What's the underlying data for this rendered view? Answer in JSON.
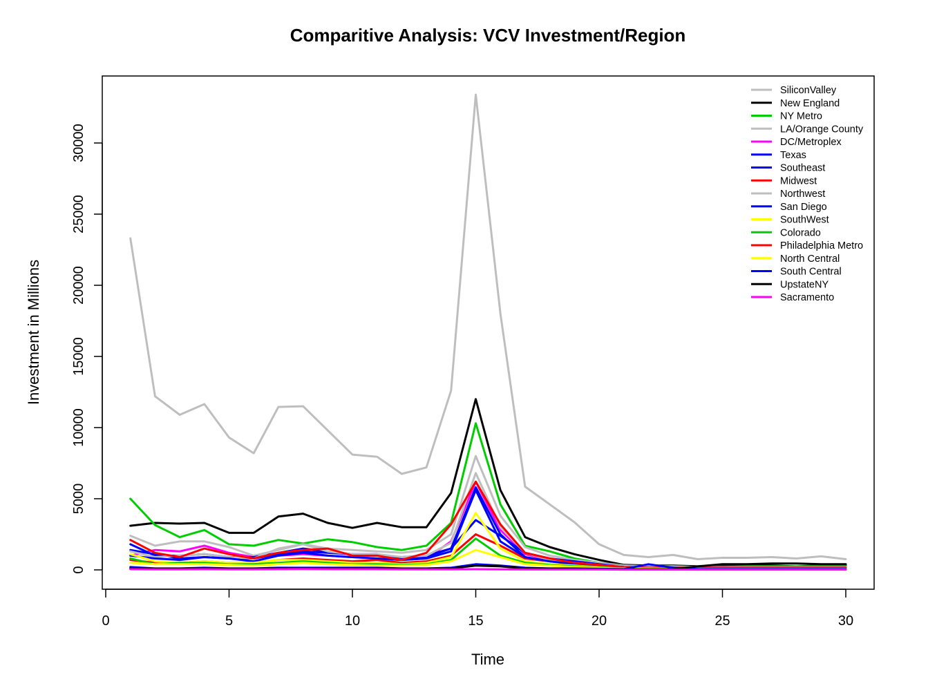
{
  "chart_data": {
    "type": "line",
    "title": "Comparitive Analysis: VCV Investment/Region",
    "xlabel": "Time",
    "ylabel": "Investment in Millions",
    "xlim": [
      0,
      30
    ],
    "ylim": [
      0,
      33500
    ],
    "xticks": [
      0,
      5,
      10,
      15,
      20,
      25,
      30
    ],
    "yticks": [
      0,
      5000,
      10000,
      15000,
      20000,
      25000,
      30000
    ],
    "grid": false,
    "legend_position": "top-right",
    "x": [
      1,
      2,
      3,
      4,
      5,
      6,
      7,
      8,
      9,
      10,
      11,
      12,
      13,
      14,
      15,
      16,
      17,
      18,
      19,
      20,
      21,
      22,
      23,
      24,
      25,
      26,
      27,
      28,
      29,
      30
    ],
    "series": [
      {
        "name": "SiliconValley",
        "color": "#BEBEBE",
        "values": [
          23300,
          12200,
          10900,
          11650,
          9300,
          8200,
          11450,
          11500,
          9800,
          8100,
          7950,
          6750,
          7200,
          12600,
          33400,
          18000,
          5850,
          4600,
          3350,
          1800,
          1050,
          900,
          1050,
          750,
          850,
          850,
          900,
          800,
          950,
          750
        ]
      },
      {
        "name": "New England",
        "color": "#000000",
        "values": [
          3100,
          3300,
          3250,
          3300,
          2600,
          2600,
          3750,
          3950,
          3300,
          2950,
          3300,
          3000,
          3000,
          5400,
          12000,
          5600,
          2300,
          1600,
          1100,
          700,
          350,
          300,
          300,
          250,
          300,
          300,
          300,
          250,
          300,
          300
        ]
      },
      {
        "name": "NY Metro",
        "color": "#00CD00",
        "values": [
          5000,
          3150,
          2300,
          2800,
          1800,
          1700,
          2100,
          1850,
          2150,
          1950,
          1600,
          1400,
          1700,
          3300,
          10300,
          4600,
          1700,
          1300,
          800,
          500,
          300,
          250,
          250,
          200,
          200,
          250,
          250,
          250,
          250,
          250
        ]
      },
      {
        "name": "LA/Orange County",
        "color": "#BEBEBE",
        "values": [
          2400,
          1700,
          2000,
          2000,
          1600,
          1000,
          1400,
          1800,
          1500,
          1400,
          1300,
          1200,
          1400,
          2500,
          8000,
          3800,
          1600,
          1000,
          700,
          500,
          300,
          250,
          250,
          200,
          200,
          200,
          200,
          200,
          200,
          200
        ]
      },
      {
        "name": "DC/Metroplex",
        "color": "#FF00FF",
        "values": [
          1000,
          1400,
          1300,
          1700,
          1200,
          900,
          1000,
          1100,
          1000,
          900,
          800,
          700,
          800,
          2000,
          6200,
          2800,
          1100,
          700,
          500,
          300,
          200,
          150,
          150,
          150,
          150,
          150,
          150,
          150,
          150,
          150
        ]
      },
      {
        "name": "Texas",
        "color": "#0000FF",
        "values": [
          1800,
          1000,
          1000,
          1100,
          900,
          900,
          1200,
          1500,
          1300,
          1100,
          1100,
          800,
          900,
          1500,
          5800,
          2500,
          900,
          600,
          500,
          350,
          200,
          150,
          150,
          150,
          150,
          150,
          150,
          150,
          150,
          150
        ]
      },
      {
        "name": "Southeast",
        "color": "#0000FF",
        "values": [
          1400,
          1100,
          800,
          900,
          800,
          800,
          1100,
          1300,
          1200,
          1100,
          1000,
          900,
          1000,
          1500,
          3500,
          2400,
          1200,
          800,
          600,
          400,
          250,
          200,
          200,
          150,
          150,
          150,
          150,
          150,
          150,
          150
        ]
      },
      {
        "name": "Midwest",
        "color": "#FF0000",
        "values": [
          700,
          500,
          500,
          600,
          500,
          500,
          700,
          800,
          700,
          600,
          700,
          500,
          600,
          1000,
          2500,
          1700,
          800,
          600,
          400,
          300,
          200,
          150,
          150,
          150,
          150,
          150,
          150,
          150,
          150,
          150
        ]
      },
      {
        "name": "Northwest",
        "color": "#BEBEBE",
        "values": [
          1300,
          900,
          1000,
          1100,
          900,
          800,
          1500,
          1800,
          1300,
          1100,
          1100,
          900,
          1000,
          1900,
          6800,
          3000,
          1200,
          700,
          500,
          350,
          250,
          200,
          200,
          150,
          150,
          150,
          150,
          150,
          150,
          150
        ]
      },
      {
        "name": "San Diego",
        "color": "#0000FF",
        "values": [
          1000,
          800,
          700,
          900,
          800,
          600,
          1000,
          1200,
          1000,
          900,
          800,
          700,
          800,
          1300,
          5600,
          2000,
          900,
          600,
          400,
          300,
          200,
          150,
          150,
          100,
          100,
          100,
          100,
          100,
          100,
          100
        ]
      },
      {
        "name": "SouthWest",
        "color": "#FFFF00",
        "values": [
          1100,
          600,
          500,
          600,
          500,
          500,
          700,
          700,
          600,
          500,
          500,
          400,
          500,
          900,
          4000,
          1500,
          600,
          400,
          300,
          200,
          150,
          100,
          100,
          100,
          100,
          100,
          100,
          100,
          100,
          100
        ]
      },
      {
        "name": "Colorado",
        "color": "#00CD00",
        "values": [
          800,
          400,
          500,
          500,
          400,
          400,
          500,
          600,
          500,
          400,
          400,
          350,
          400,
          700,
          2200,
          1000,
          500,
          350,
          250,
          200,
          120,
          100,
          100,
          100,
          100,
          100,
          100,
          100,
          100,
          100
        ]
      },
      {
        "name": "Philadelphia Metro",
        "color": "#FF0000",
        "values": [
          2100,
          1200,
          900,
          1500,
          1100,
          800,
          1200,
          1400,
          1500,
          1000,
          1000,
          700,
          1200,
          3200,
          6200,
          3200,
          1200,
          800,
          500,
          350,
          200,
          150,
          150,
          150,
          150,
          150,
          150,
          150,
          150,
          150
        ]
      },
      {
        "name": "North Central",
        "color": "#FFFF00",
        "values": [
          500,
          400,
          400,
          400,
          350,
          300,
          400,
          500,
          400,
          350,
          300,
          300,
          350,
          600,
          1400,
          900,
          400,
          300,
          200,
          150,
          100,
          100,
          80,
          80,
          80,
          80,
          80,
          80,
          80,
          80
        ]
      },
      {
        "name": "South Central",
        "color": "#0000FF",
        "values": [
          200,
          100,
          100,
          150,
          100,
          100,
          150,
          150,
          150,
          150,
          150,
          100,
          100,
          150,
          400,
          300,
          150,
          100,
          100,
          80,
          60,
          400,
          150,
          60,
          60,
          60,
          60,
          60,
          60,
          60
        ]
      },
      {
        "name": "UpstateNY",
        "color": "#000000",
        "values": [
          100,
          80,
          80,
          100,
          80,
          80,
          120,
          120,
          100,
          100,
          100,
          80,
          80,
          100,
          300,
          250,
          100,
          80,
          60,
          60,
          50,
          50,
          50,
          250,
          400,
          400,
          450,
          450,
          400,
          400
        ]
      },
      {
        "name": "Sacramento",
        "color": "#FF00FF",
        "values": [
          50,
          40,
          40,
          50,
          40,
          40,
          50,
          60,
          50,
          50,
          50,
          40,
          40,
          40,
          50,
          40,
          30,
          30,
          30,
          30,
          20,
          20,
          20,
          20,
          20,
          20,
          20,
          20,
          20,
          20
        ]
      }
    ]
  }
}
